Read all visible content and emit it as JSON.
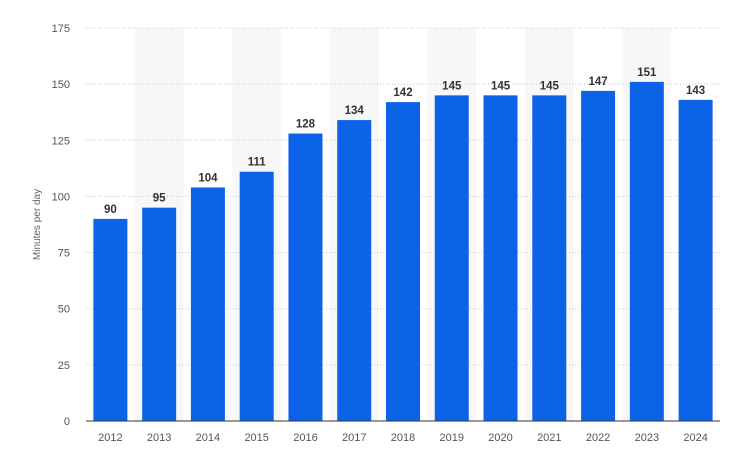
{
  "chart_data": {
    "type": "bar",
    "categories": [
      "2012",
      "2013",
      "2014",
      "2015",
      "2016",
      "2017",
      "2018",
      "2019",
      "2020",
      "2021",
      "2022",
      "2023",
      "2024"
    ],
    "values": [
      90,
      95,
      104,
      111,
      128,
      134,
      142,
      145,
      145,
      145,
      147,
      151,
      143
    ],
    "data_labels": [
      "90",
      "95",
      "104",
      "111",
      "128",
      "134",
      "142",
      "145",
      "145",
      "145",
      "147",
      "151",
      "143"
    ],
    "ylabel": "Minutes per day",
    "xlabel": "",
    "ylim": [
      0,
      175
    ],
    "yticks": [
      "0",
      "25",
      "50",
      "75",
      "100",
      "125",
      "150",
      "175"
    ],
    "grid": true,
    "bar_color": "#0d63e8"
  }
}
